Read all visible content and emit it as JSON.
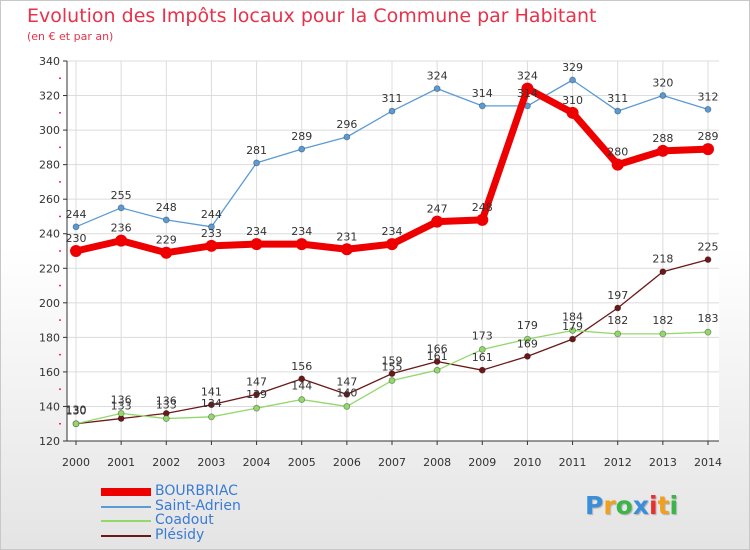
{
  "chart_data": {
    "type": "line",
    "title": "Evolution des Impôts locaux pour la Commune par Habitant",
    "subtitle": "(en € et par an)",
    "xlabel": "",
    "ylabel": "",
    "categories": [
      "2000",
      "2001",
      "2002",
      "2003",
      "2004",
      "2005",
      "2006",
      "2007",
      "2008",
      "2009",
      "2010",
      "2011",
      "2012",
      "2013",
      "2014"
    ],
    "ylim": [
      120,
      340
    ],
    "yticks": [
      120,
      140,
      160,
      180,
      200,
      220,
      240,
      260,
      280,
      300,
      320,
      340
    ],
    "grid": true,
    "legend_position": "bottom-left",
    "series": [
      {
        "name": "BOURBRIAC",
        "color": "#ee0000",
        "values": [
          230,
          236,
          229,
          233,
          234,
          234,
          231,
          234,
          247,
          248,
          324,
          310,
          280,
          288,
          289
        ]
      },
      {
        "name": "Saint-Adrien",
        "color": "#5b9bd5",
        "values": [
          244,
          255,
          248,
          244,
          281,
          289,
          296,
          311,
          324,
          314,
          314,
          329,
          311,
          320,
          312
        ]
      },
      {
        "name": "Coadout",
        "color": "#92d86a",
        "values": [
          130,
          136,
          133,
          134,
          139,
          144,
          140,
          155,
          161,
          173,
          179,
          184,
          182,
          182,
          183
        ]
      },
      {
        "name": "Plésidy",
        "color": "#6b1818",
        "values": [
          130,
          133,
          136,
          141,
          147,
          156,
          147,
          159,
          166,
          161,
          169,
          179,
          197,
          218,
          225
        ]
      }
    ]
  },
  "logo": {
    "letters": [
      "P",
      "r",
      "o",
      "x",
      "i",
      "t",
      "i"
    ],
    "colors": [
      "#3b8ed8",
      "#f0a020",
      "#3bb54a",
      "#3b8ed8",
      "#e83030",
      "#f0a020",
      "#3bb54a"
    ]
  }
}
